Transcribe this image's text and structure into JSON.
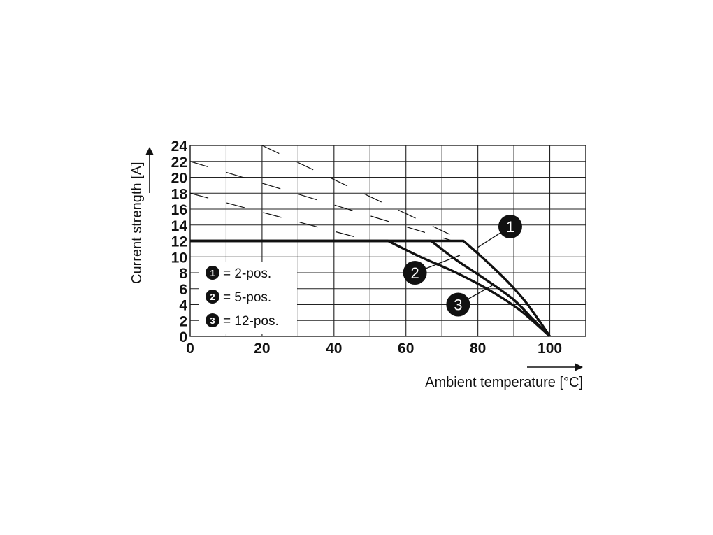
{
  "chart_data": {
    "type": "line",
    "xlabel": "Ambient temperature [°C]",
    "ylabel": "Current strength [A]",
    "xlim": [
      0,
      110
    ],
    "ylim": [
      0,
      24
    ],
    "x_ticks": [
      "0",
      "20",
      "40",
      "60",
      "80",
      "100"
    ],
    "y_ticks": [
      "0",
      "2",
      "4",
      "6",
      "8",
      "10",
      "12",
      "14",
      "16",
      "18",
      "20",
      "22",
      "24"
    ],
    "grid": true,
    "legend_position": "bottom-left",
    "legend": [
      {
        "marker": "1",
        "label": "= 2-pos."
      },
      {
        "marker": "2",
        "label": "= 5-pos."
      },
      {
        "marker": "3",
        "label": "= 12-pos."
      }
    ],
    "series": [
      {
        "marker": "1",
        "points": [
          [
            0,
            12
          ],
          [
            76,
            12
          ],
          [
            82,
            9.6
          ],
          [
            88,
            7
          ],
          [
            93,
            4.5
          ],
          [
            97,
            2
          ],
          [
            100,
            0
          ]
        ]
      },
      {
        "marker": "2",
        "points": [
          [
            0,
            12
          ],
          [
            67,
            12
          ],
          [
            74,
            9.6
          ],
          [
            82,
            7.2
          ],
          [
            90,
            4.6
          ],
          [
            95,
            2.3
          ],
          [
            100,
            0
          ]
        ]
      },
      {
        "marker": "3",
        "points": [
          [
            0,
            12
          ],
          [
            55,
            12
          ],
          [
            64,
            10
          ],
          [
            74,
            8
          ],
          [
            84,
            5.6
          ],
          [
            92,
            3.2
          ],
          [
            100,
            0
          ]
        ]
      }
    ],
    "dashed_lines": [
      {
        "points": [
          [
            0,
            22
          ],
          [
            73,
            12
          ]
        ]
      },
      {
        "points": [
          [
            0,
            18
          ],
          [
            50,
            12
          ]
        ]
      },
      {
        "points": [
          [
            20,
            24
          ],
          [
            76,
            12
          ]
        ]
      }
    ],
    "colors": {
      "line": "#111111",
      "grid": "#222222",
      "background": "#ffffff"
    }
  }
}
